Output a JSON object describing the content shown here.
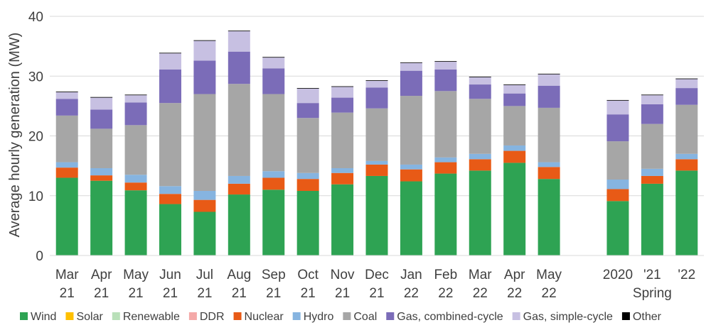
{
  "chart_data": {
    "type": "bar",
    "stacked": true,
    "title": "",
    "ylabel": "Average hourly generation (MW)",
    "xlabel": "",
    "ylim": [
      0,
      40
    ],
    "yticks": [
      0,
      10,
      20,
      30,
      40
    ],
    "grid": true,
    "legend_position": "bottom",
    "categories": [
      {
        "line1": "Mar",
        "line2": "21"
      },
      {
        "line1": "Apr",
        "line2": "21"
      },
      {
        "line1": "May",
        "line2": "21"
      },
      {
        "line1": "Jun",
        "line2": "21"
      },
      {
        "line1": "Jul",
        "line2": "21"
      },
      {
        "line1": "Aug",
        "line2": "21"
      },
      {
        "line1": "Sep",
        "line2": "21"
      },
      {
        "line1": "Oct",
        "line2": "21"
      },
      {
        "line1": "Nov",
        "line2": "21"
      },
      {
        "line1": "Dec",
        "line2": "21"
      },
      {
        "line1": "Jan",
        "line2": "22"
      },
      {
        "line1": "Feb",
        "line2": "22"
      },
      {
        "line1": "Mar",
        "line2": "22"
      },
      {
        "line1": "Apr",
        "line2": "22"
      },
      {
        "line1": "May",
        "line2": "22"
      },
      {
        "line1": "",
        "line2": ""
      },
      {
        "line1": "2020",
        "line2": ""
      },
      {
        "line1": "'21",
        "line2": ""
      },
      {
        "line1": "'22",
        "line2": ""
      }
    ],
    "group_label": "Spring",
    "series": [
      {
        "name": "Wind",
        "color": "#2ea353",
        "values": [
          13.0,
          12.5,
          10.9,
          8.6,
          7.3,
          10.2,
          11.0,
          10.8,
          11.9,
          13.3,
          12.4,
          13.7,
          14.2,
          15.5,
          12.8,
          0,
          9.1,
          12.0,
          14.2
        ]
      },
      {
        "name": "Solar",
        "color": "#ffc000",
        "values": [
          0,
          0,
          0,
          0,
          0,
          0,
          0,
          0,
          0,
          0,
          0,
          0,
          0,
          0,
          0,
          0,
          0,
          0,
          0
        ]
      },
      {
        "name": "Renewable",
        "color": "#b9e0b9",
        "values": [
          0,
          0,
          0,
          0,
          0,
          0,
          0,
          0,
          0,
          0,
          0,
          0,
          0,
          0,
          0,
          0,
          0,
          0,
          0
        ]
      },
      {
        "name": "DDR",
        "color": "#f4a9a8",
        "values": [
          0,
          0,
          0,
          0,
          0,
          0,
          0,
          0,
          0,
          0,
          0,
          0,
          0,
          0,
          0,
          0,
          0,
          0,
          0
        ]
      },
      {
        "name": "Nuclear",
        "color": "#e85a16",
        "values": [
          1.7,
          0.9,
          1.3,
          1.7,
          2.0,
          1.8,
          2.0,
          2.0,
          1.9,
          1.9,
          2.0,
          1.9,
          1.9,
          2.0,
          2.0,
          0,
          2.0,
          1.3,
          1.9
        ]
      },
      {
        "name": "Hydro",
        "color": "#86b4e0",
        "values": [
          0.9,
          1.2,
          1.3,
          1.3,
          1.5,
          1.3,
          1.1,
          1.0,
          0.8,
          0.6,
          0.8,
          0.8,
          0.9,
          0.9,
          0.8,
          0,
          1.6,
          1.2,
          0.9
        ]
      },
      {
        "name": "Coal",
        "color": "#a6a6a6",
        "values": [
          7.8,
          6.6,
          8.3,
          13.9,
          16.2,
          15.4,
          12.9,
          9.2,
          9.3,
          8.8,
          11.5,
          11.1,
          9.2,
          6.6,
          9.1,
          0,
          6.4,
          7.5,
          8.2
        ]
      },
      {
        "name": "Gas, combined-cycle",
        "color": "#7b6cb8",
        "values": [
          2.8,
          3.2,
          3.8,
          5.6,
          5.6,
          5.4,
          4.3,
          2.5,
          2.5,
          3.5,
          4.2,
          3.6,
          2.4,
          2.1,
          3.7,
          0,
          4.5,
          3.3,
          2.8
        ]
      },
      {
        "name": "Gas, simple-cycle",
        "color": "#c7c0e2",
        "values": [
          1.1,
          2.0,
          1.2,
          2.7,
          3.3,
          3.4,
          1.8,
          2.4,
          1.8,
          1.1,
          1.3,
          1.3,
          1.2,
          1.4,
          1.9,
          0,
          2.3,
          1.5,
          1.5
        ]
      },
      {
        "name": "Other",
        "color": "#000000",
        "values": [
          0.1,
          0.1,
          0.1,
          0.1,
          0.1,
          0.1,
          0.1,
          0.1,
          0.1,
          0.1,
          0.1,
          0.1,
          0.1,
          0.1,
          0.1,
          0,
          0.1,
          0.1,
          0.1
        ]
      }
    ]
  }
}
